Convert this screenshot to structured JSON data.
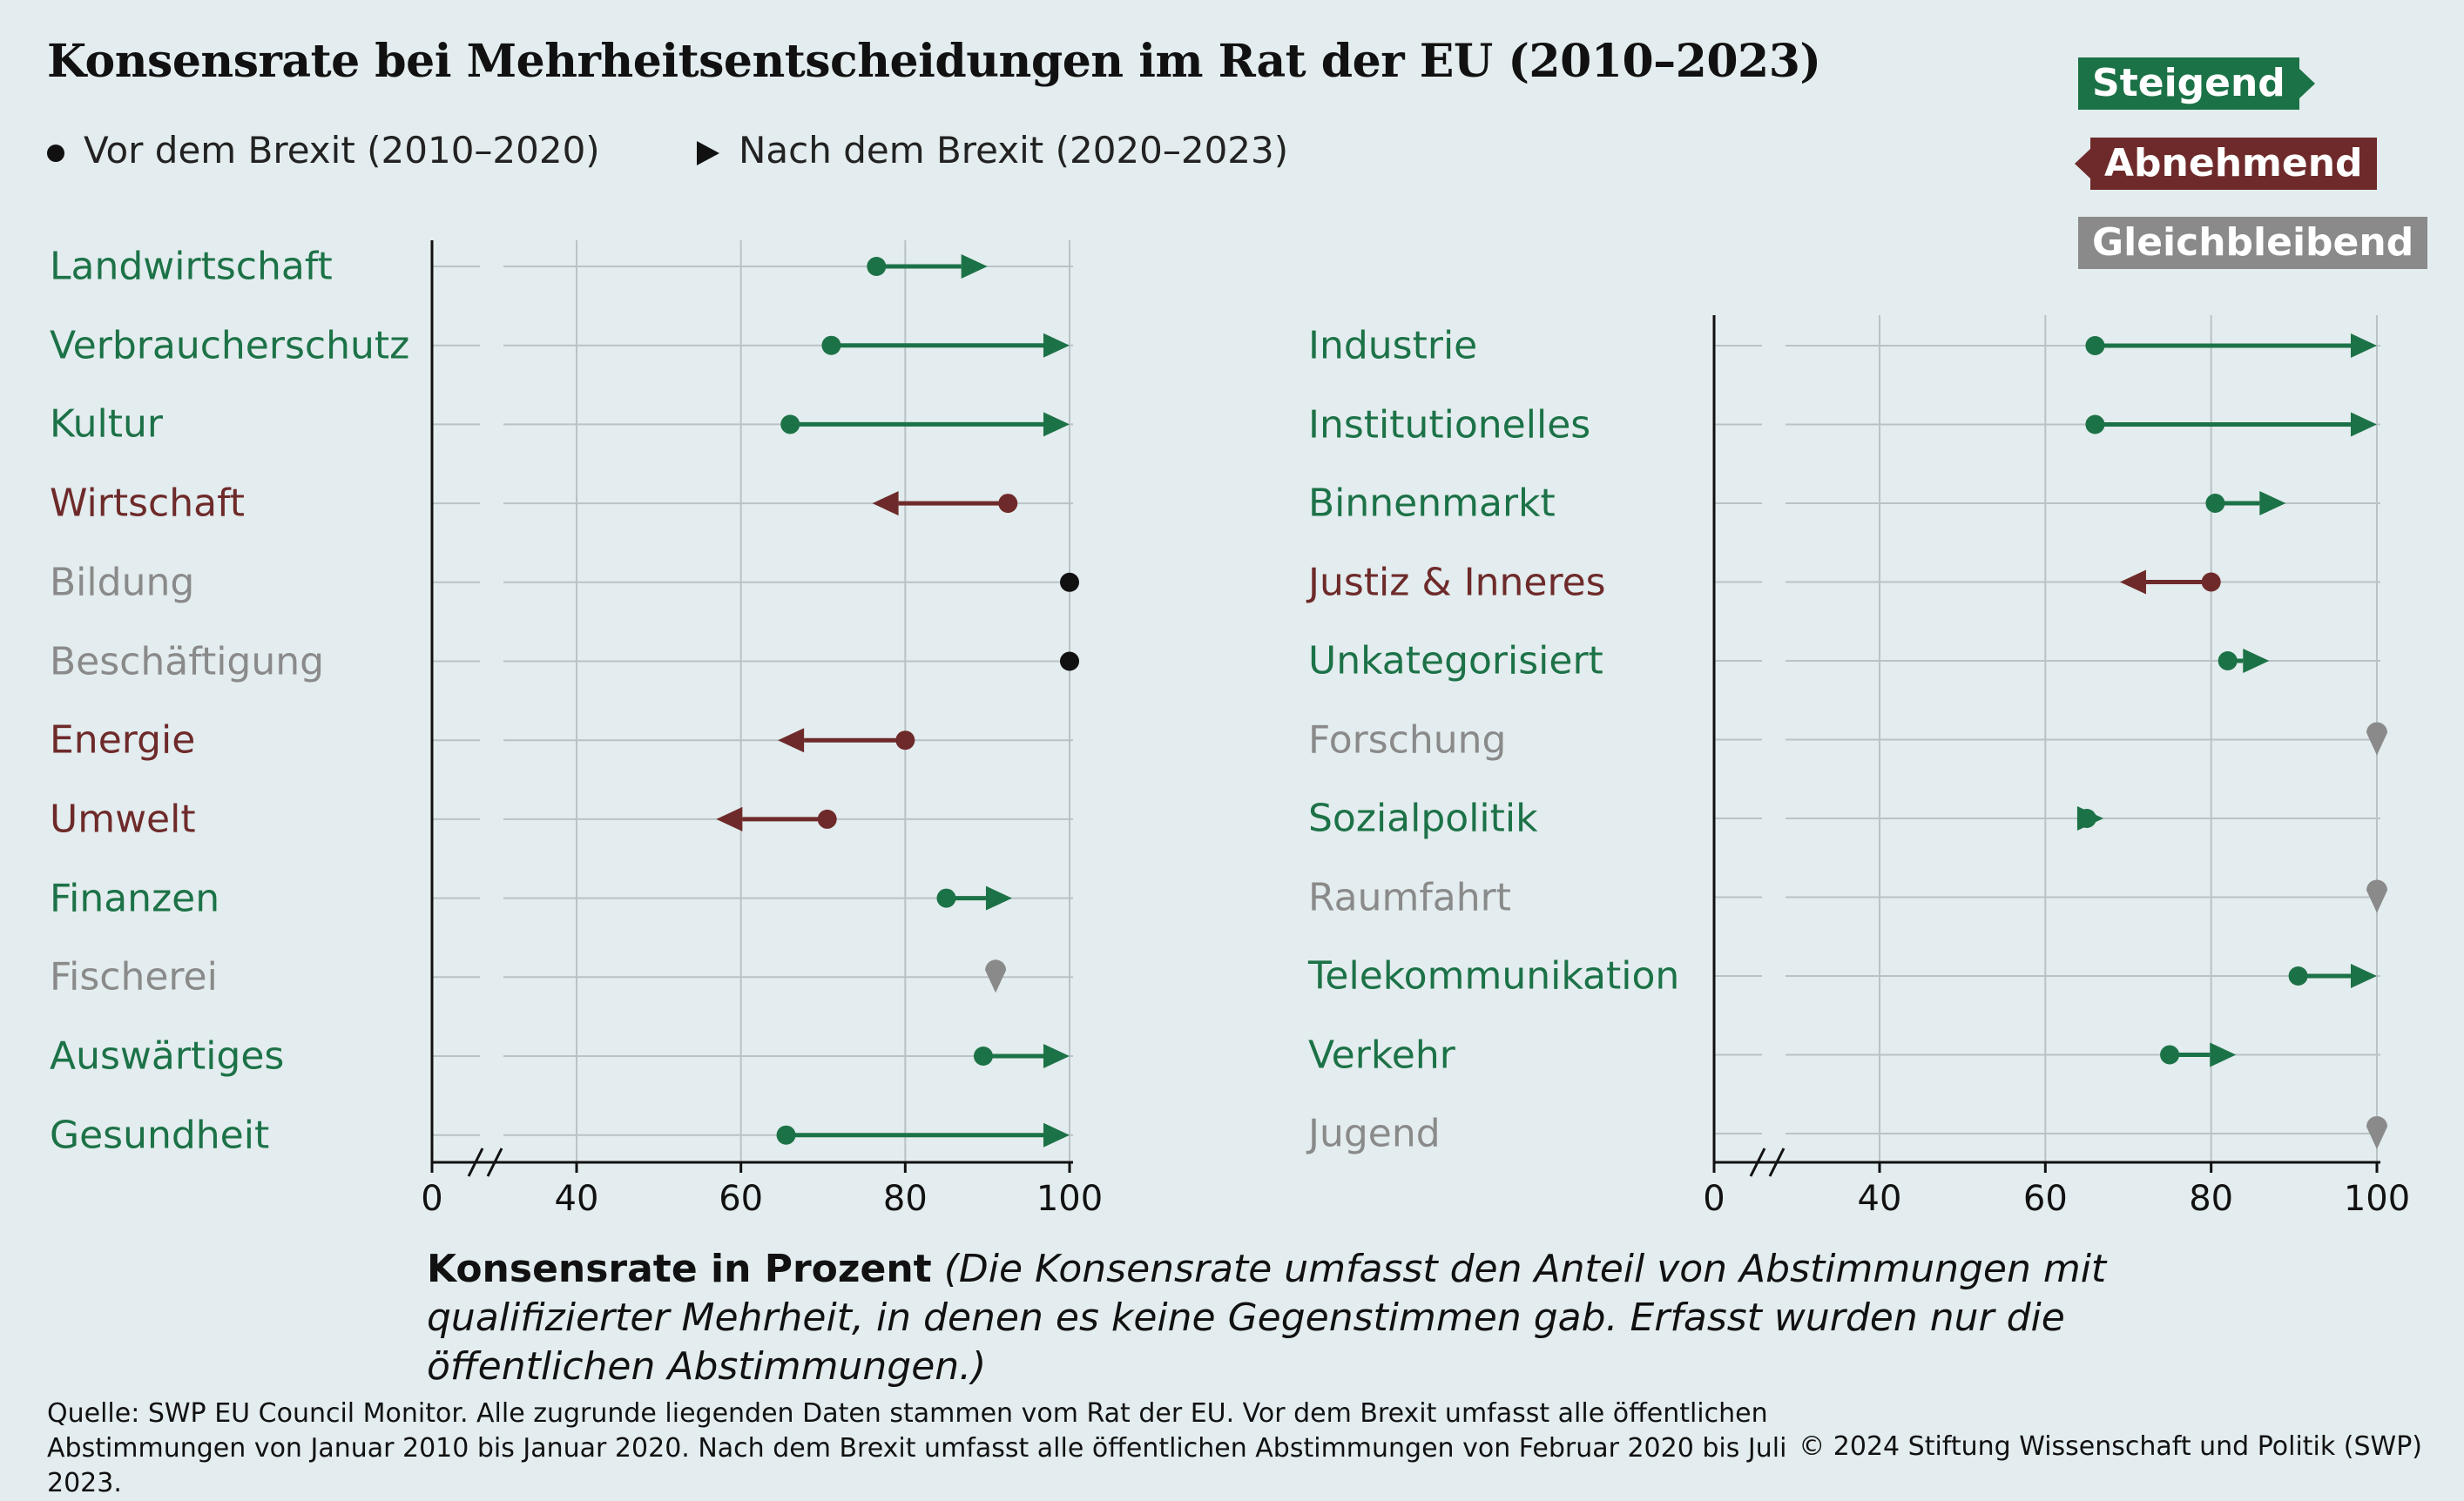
{
  "title": "Konsensrate bei Mehrheitsentscheidungen im Rat der EU (2010–2023)",
  "legend": {
    "before": "Vor dem Brexit (2010–2020)",
    "after": "Nach dem Brexit (2020–2023)"
  },
  "trend_legend": {
    "rising": "Steigend",
    "falling": "Abnehmend",
    "constant": "Gleichbleibend"
  },
  "colors": {
    "rising": "#1c7247",
    "falling": "#6e2a2a",
    "constant": "#8a8a8a",
    "black": "#111111"
  },
  "note_bold": "Konsensrate in Prozent",
  "note_italic": "(Die Konsensrate umfasst den Anteil von Abstimmungen mit qualifizierter Mehrheit, in denen es keine Gegenstimmen gab. Erfasst wurden nur die öffentlichen Abstimmungen.)",
  "source": "Quelle: SWP EU Council Monitor. Alle zugrunde liegenden Daten stammen vom Rat der EU. Vor dem Brexit umfasst alle öffentlichen Abstimmungen von Januar 2010 bis Januar 2020. Nach dem Brexit umfasst alle öffentlichen Abstimmungen von Februar 2020 bis Juli 2023.",
  "copyright": "© 2024 Stiftung Wissenschaft und Politik (SWP)",
  "chart_data": [
    {
      "type": "dumbbell",
      "xlim": [
        0,
        100
      ],
      "axis_break": true,
      "xticks": [
        0,
        40,
        60,
        80,
        100
      ],
      "grid": true,
      "rows": [
        {
          "name": "Landwirtschaft",
          "before": 76.5,
          "after": 90,
          "trend": "rising"
        },
        {
          "name": "Verbraucherschutz",
          "before": 71,
          "after": 100,
          "trend": "rising"
        },
        {
          "name": "Kultur",
          "before": 66,
          "after": 100,
          "trend": "rising"
        },
        {
          "name": "Wirtschaft",
          "before": 92.5,
          "after": 76,
          "trend": "falling"
        },
        {
          "name": "Bildung",
          "before": 100,
          "after": null,
          "trend": "none"
        },
        {
          "name": "Beschäftigung",
          "before": 100,
          "after": null,
          "trend": "none"
        },
        {
          "name": "Energie",
          "before": 80,
          "after": 64.5,
          "trend": "falling"
        },
        {
          "name": "Umwelt",
          "before": 70.5,
          "after": 57,
          "trend": "falling"
        },
        {
          "name": "Finanzen",
          "before": 85,
          "after": 93,
          "trend": "rising"
        },
        {
          "name": "Fischerei",
          "before": 91,
          "after": 91,
          "trend": "constant"
        },
        {
          "name": "Auswärtiges",
          "before": 89.5,
          "after": 100,
          "trend": "rising"
        },
        {
          "name": "Gesundheit",
          "before": 65.5,
          "after": 100,
          "trend": "rising"
        }
      ]
    },
    {
      "type": "dumbbell",
      "xlim": [
        0,
        100
      ],
      "axis_break": true,
      "xticks": [
        0,
        40,
        60,
        80,
        100
      ],
      "grid": true,
      "rows": [
        {
          "name": "Industrie",
          "before": 66,
          "after": 100,
          "trend": "rising"
        },
        {
          "name": "Institutionelles",
          "before": 66,
          "after": 100,
          "trend": "rising"
        },
        {
          "name": "Binnenmarkt",
          "before": 80.5,
          "after": 89,
          "trend": "rising"
        },
        {
          "name": "Justiz & Inneres",
          "before": 80,
          "after": 69,
          "trend": "falling"
        },
        {
          "name": "Unkategorisiert",
          "before": 82,
          "after": 87,
          "trend": "rising"
        },
        {
          "name": "Forschung",
          "before": 100,
          "after": 100,
          "trend": "constant"
        },
        {
          "name": "Sozialpolitik",
          "before": 65,
          "after": 67,
          "trend": "rising"
        },
        {
          "name": "Raumfahrt",
          "before": 100,
          "after": 100,
          "trend": "constant"
        },
        {
          "name": "Telekommunikation",
          "before": 90.5,
          "after": 100,
          "trend": "rising"
        },
        {
          "name": "Verkehr",
          "before": 75,
          "after": 83,
          "trend": "rising"
        },
        {
          "name": "Jugend",
          "before": 100,
          "after": 100,
          "trend": "constant"
        }
      ]
    }
  ]
}
